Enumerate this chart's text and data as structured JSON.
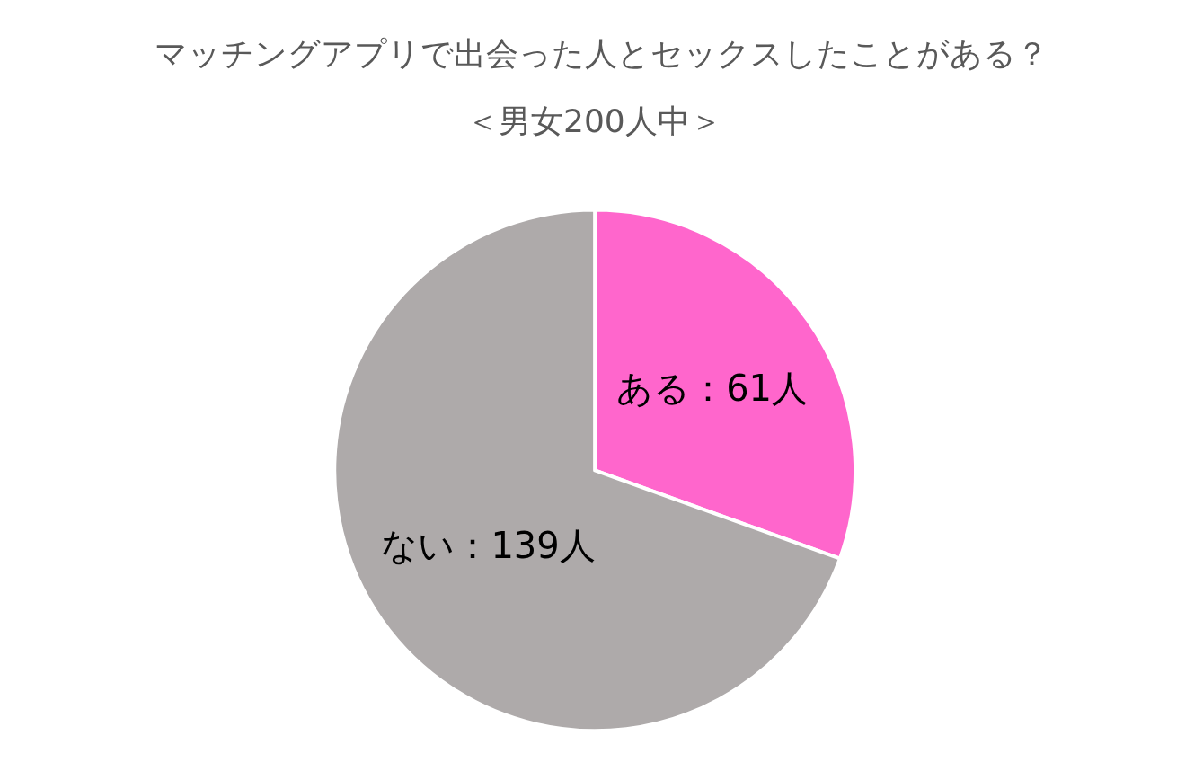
{
  "chart_data": {
    "type": "pie",
    "title": "マッチングアプリで出会った人とセックスしたことがある？",
    "subtitle": "＜男女200人中＞",
    "categories": [
      "ある：61人",
      "ない：139人"
    ],
    "values": [
      61,
      139
    ],
    "colors": [
      "#ff66cc",
      "#aeaaaa"
    ],
    "legend": false
  }
}
